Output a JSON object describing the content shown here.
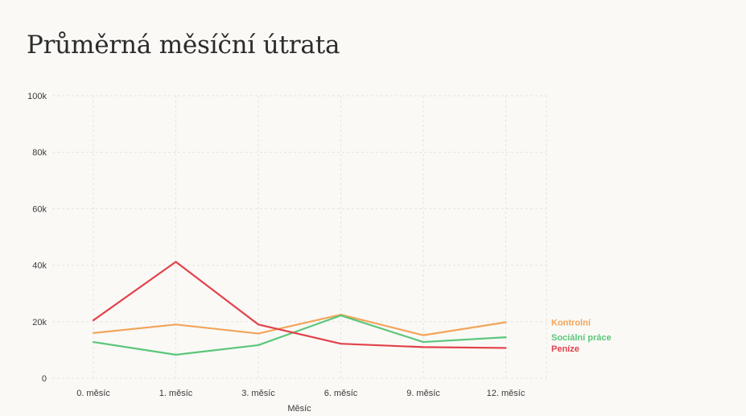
{
  "chart_data": {
    "type": "line",
    "title": "Průměrná měsíční útrata",
    "xlabel": "Měsíc",
    "ylabel": "",
    "categories": [
      "0. měsíc",
      "1. měsíc",
      "3. měsíc",
      "6. měsíc",
      "9. měsíc",
      "12. měsíc"
    ],
    "ylim": [
      0,
      100000
    ],
    "yticks": [
      0,
      20000,
      40000,
      60000,
      80000,
      100000
    ],
    "ytick_labels": [
      "0",
      "20k",
      "40k",
      "60k",
      "80k",
      "100k"
    ],
    "grid": true,
    "legend_placement": "right, labels at line ends",
    "series": [
      {
        "name": "Kontrolní",
        "color": "#f2a55a",
        "values": [
          16000,
          19000,
          15800,
          22500,
          15200,
          19800
        ]
      },
      {
        "name": "Sociální práce",
        "color": "#5cc67a",
        "values": [
          12800,
          8300,
          11700,
          22200,
          12800,
          14500
        ]
      },
      {
        "name": "Peníze",
        "color": "#e2414b",
        "values": [
          20500,
          41200,
          19000,
          12200,
          11000,
          10700
        ]
      }
    ]
  }
}
